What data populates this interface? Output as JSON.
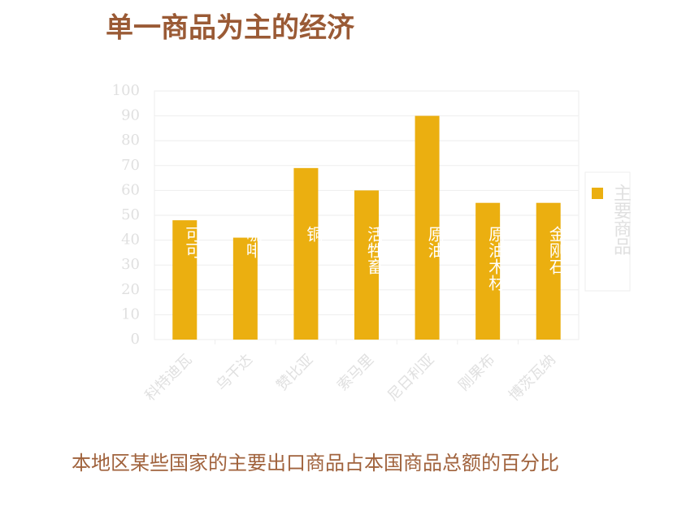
{
  "chart_data": {
    "type": "bar",
    "title": "单一商品为主的经济",
    "caption": "本地区某些国家的主要出口商品占本国商品总额的百分比",
    "categories": [
      "科特迪瓦",
      "乌干达",
      "赞比亚",
      "索马里",
      "尼日利亚",
      "刚果布",
      "博茨瓦纳"
    ],
    "series": [
      {
        "name": "主要商品",
        "color": "#ebaf10",
        "values": [
          48,
          41,
          69,
          60,
          90,
          55,
          55
        ]
      }
    ],
    "bar_labels": [
      "可可",
      "咖啡",
      "铜",
      "活牲畜",
      "原油",
      "原油木材",
      "金刚石"
    ],
    "ylim": [
      0,
      100
    ],
    "yticks": [
      0,
      10,
      20,
      30,
      40,
      50,
      60,
      70,
      80,
      90,
      100
    ],
    "grid": true,
    "legend": "right"
  }
}
